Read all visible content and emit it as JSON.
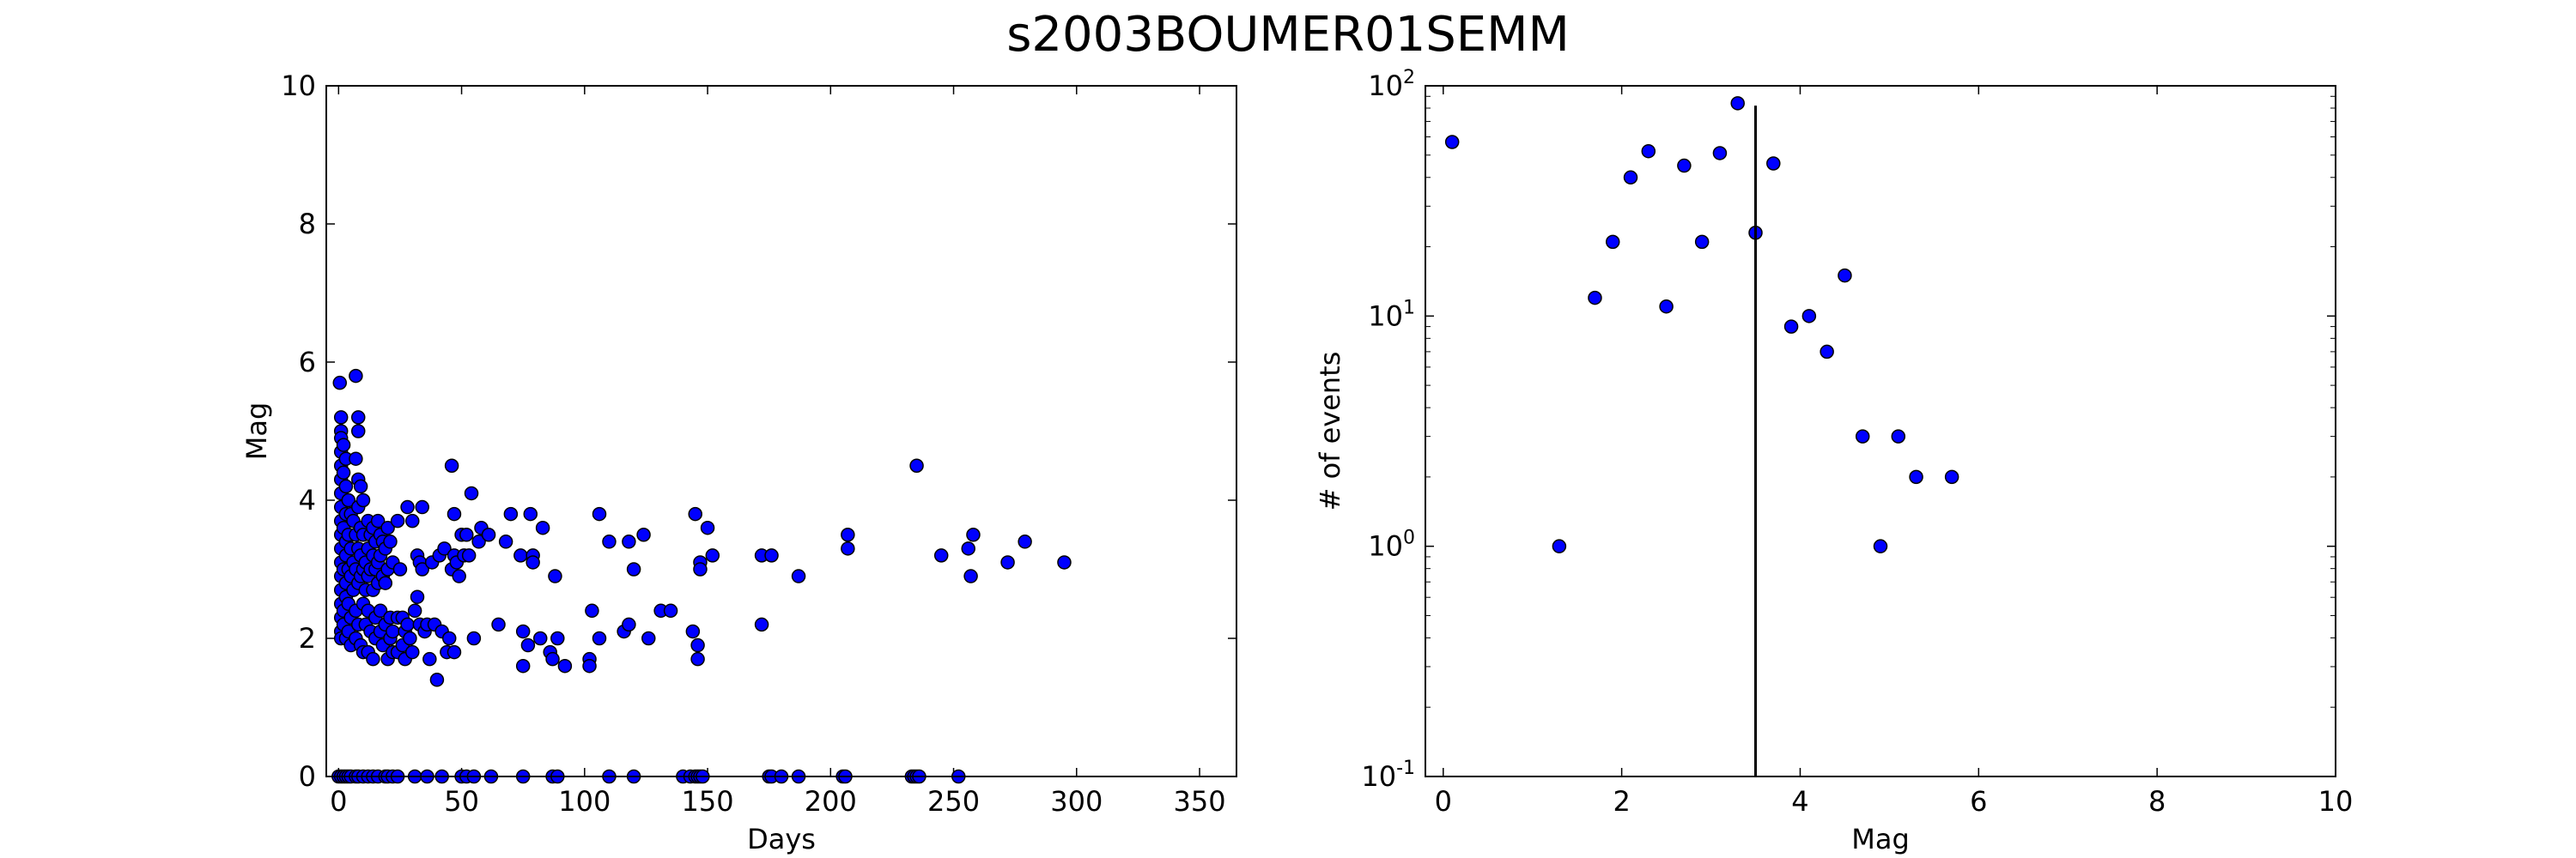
{
  "figure": {
    "title": "s2003BOUMER01SEMM"
  },
  "chart_data": [
    {
      "type": "scatter",
      "title": "",
      "xlabel": "Days",
      "ylabel": "Mag",
      "xlim": [
        -5,
        365
      ],
      "ylim": [
        0,
        10
      ],
      "xticks": [
        0,
        50,
        100,
        150,
        200,
        250,
        300,
        350
      ],
      "yticks": [
        0,
        2,
        4,
        6,
        8,
        10
      ],
      "marker_color": "#0000ff",
      "points": [
        [
          0.5,
          5.7
        ],
        [
          1,
          5.2
        ],
        [
          1,
          5.0
        ],
        [
          1,
          4.9
        ],
        [
          1,
          4.7
        ],
        [
          1,
          4.5
        ],
        [
          1,
          4.3
        ],
        [
          1,
          4.1
        ],
        [
          1,
          3.9
        ],
        [
          1,
          3.7
        ],
        [
          1,
          3.5
        ],
        [
          1,
          3.3
        ],
        [
          1,
          3.1
        ],
        [
          1,
          2.9
        ],
        [
          1,
          2.7
        ],
        [
          1,
          2.5
        ],
        [
          1,
          2.3
        ],
        [
          1,
          2.1
        ],
        [
          1,
          2.0
        ],
        [
          2,
          4.8
        ],
        [
          2,
          4.4
        ],
        [
          2,
          3.6
        ],
        [
          2,
          3.0
        ],
        [
          2,
          2.4
        ],
        [
          2,
          2.2
        ],
        [
          3,
          4.6
        ],
        [
          3,
          4.2
        ],
        [
          3,
          3.8
        ],
        [
          3,
          3.4
        ],
        [
          3,
          3.2
        ],
        [
          3,
          2.8
        ],
        [
          3,
          2.6
        ],
        [
          3,
          2.0
        ],
        [
          4,
          4.0
        ],
        [
          4,
          3.5
        ],
        [
          4,
          3.0
        ],
        [
          4,
          2.5
        ],
        [
          4,
          2.1
        ],
        [
          5,
          3.8
        ],
        [
          5,
          3.3
        ],
        [
          5,
          2.9
        ],
        [
          5,
          2.3
        ],
        [
          5,
          1.9
        ],
        [
          6,
          3.7
        ],
        [
          6,
          3.1
        ],
        [
          6,
          2.7
        ],
        [
          7,
          5.8
        ],
        [
          7,
          4.6
        ],
        [
          7,
          3.5
        ],
        [
          7,
          3.0
        ],
        [
          7,
          2.4
        ],
        [
          7,
          2.0
        ],
        [
          8,
          5.2
        ],
        [
          8,
          5.0
        ],
        [
          8,
          4.3
        ],
        [
          8,
          3.9
        ],
        [
          8,
          3.3
        ],
        [
          8,
          2.8
        ],
        [
          8,
          2.2
        ],
        [
          9,
          4.2
        ],
        [
          9,
          3.6
        ],
        [
          9,
          3.2
        ],
        [
          9,
          2.9
        ],
        [
          9,
          1.9
        ],
        [
          10,
          4.0
        ],
        [
          10,
          3.5
        ],
        [
          10,
          3.0
        ],
        [
          10,
          2.5
        ],
        [
          10,
          1.8
        ],
        [
          11,
          3.1
        ],
        [
          11,
          2.7
        ],
        [
          11,
          2.2
        ],
        [
          12,
          3.7
        ],
        [
          12,
          3.3
        ],
        [
          12,
          2.9
        ],
        [
          12,
          2.4
        ],
        [
          12,
          1.8
        ],
        [
          13,
          3.5
        ],
        [
          13,
          3.0
        ],
        [
          13,
          2.1
        ],
        [
          14,
          3.6
        ],
        [
          14,
          3.2
        ],
        [
          14,
          2.7
        ],
        [
          14,
          1.7
        ],
        [
          15,
          3.4
        ],
        [
          15,
          3.0
        ],
        [
          15,
          2.3
        ],
        [
          15,
          2.0
        ],
        [
          16,
          3.7
        ],
        [
          16,
          3.1
        ],
        [
          16,
          2.8
        ],
        [
          17,
          3.5
        ],
        [
          17,
          3.2
        ],
        [
          17,
          2.4
        ],
        [
          17,
          2.1
        ],
        [
          18,
          3.4
        ],
        [
          18,
          2.9
        ],
        [
          18,
          1.9
        ],
        [
          19,
          3.3
        ],
        [
          19,
          2.8
        ],
        [
          19,
          2.2
        ],
        [
          20,
          3.6
        ],
        [
          20,
          3.0
        ],
        [
          20,
          1.7
        ],
        [
          21,
          3.4
        ],
        [
          21,
          2.3
        ],
        [
          21,
          2.0
        ],
        [
          22,
          3.1
        ],
        [
          22,
          2.1
        ],
        [
          22,
          1.8
        ],
        [
          24,
          3.7
        ],
        [
          24,
          2.3
        ],
        [
          24,
          1.8
        ],
        [
          25,
          3.0
        ],
        [
          26,
          2.3
        ],
        [
          26,
          1.9
        ],
        [
          27,
          2.1
        ],
        [
          27,
          1.7
        ],
        [
          28,
          3.9
        ],
        [
          28,
          2.2
        ],
        [
          29,
          2.0
        ],
        [
          30,
          3.7
        ],
        [
          30,
          1.8
        ],
        [
          31,
          2.4
        ],
        [
          32,
          3.2
        ],
        [
          32,
          2.6
        ],
        [
          33,
          3.1
        ],
        [
          33,
          2.2
        ],
        [
          34,
          3.9
        ],
        [
          34,
          3.0
        ],
        [
          35,
          2.1
        ],
        [
          36,
          2.2
        ],
        [
          37,
          1.7
        ],
        [
          38,
          3.1
        ],
        [
          39,
          2.2
        ],
        [
          40,
          1.4
        ],
        [
          41,
          3.2
        ],
        [
          42,
          2.1
        ],
        [
          43,
          3.3
        ],
        [
          44,
          1.8
        ],
        [
          45,
          2.0
        ],
        [
          46,
          4.5
        ],
        [
          46,
          3.0
        ],
        [
          47,
          3.8
        ],
        [
          47,
          3.2
        ],
        [
          47,
          1.8
        ],
        [
          48,
          3.1
        ],
        [
          49,
          2.9
        ],
        [
          50,
          3.5
        ],
        [
          51,
          3.2
        ],
        [
          52,
          3.5
        ],
        [
          53,
          3.2
        ],
        [
          54,
          4.1
        ],
        [
          55,
          2.0
        ],
        [
          57,
          3.4
        ],
        [
          58,
          3.6
        ],
        [
          61,
          3.5
        ],
        [
          65,
          2.2
        ],
        [
          68,
          3.4
        ],
        [
          70,
          3.8
        ],
        [
          74,
          3.2
        ],
        [
          75,
          1.6
        ],
        [
          75,
          2.1
        ],
        [
          77,
          1.9
        ],
        [
          78,
          3.8
        ],
        [
          79,
          3.2
        ],
        [
          79,
          3.1
        ],
        [
          82,
          2.0
        ],
        [
          83,
          3.6
        ],
        [
          86,
          1.8
        ],
        [
          87,
          1.7
        ],
        [
          88,
          2.9
        ],
        [
          89,
          2.0
        ],
        [
          92,
          1.6
        ],
        [
          102,
          1.7
        ],
        [
          102,
          1.6
        ],
        [
          103,
          2.4
        ],
        [
          106,
          3.8
        ],
        [
          106,
          2.0
        ],
        [
          110,
          3.4
        ],
        [
          116,
          2.1
        ],
        [
          118,
          2.2
        ],
        [
          118,
          3.4
        ],
        [
          120,
          3.0
        ],
        [
          124,
          3.5
        ],
        [
          126,
          2.0
        ],
        [
          131,
          2.4
        ],
        [
          135,
          2.4
        ],
        [
          144,
          2.1
        ],
        [
          145,
          3.8
        ],
        [
          146,
          1.9
        ],
        [
          146,
          1.7
        ],
        [
          147,
          3.1
        ],
        [
          147,
          3.0
        ],
        [
          150,
          3.6
        ],
        [
          152,
          3.2
        ],
        [
          172,
          3.2
        ],
        [
          172,
          2.2
        ],
        [
          176,
          3.2
        ],
        [
          187,
          2.9
        ],
        [
          207,
          3.5
        ],
        [
          207,
          3.3
        ],
        [
          235,
          4.5
        ],
        [
          245,
          3.2
        ],
        [
          256,
          3.3
        ],
        [
          257,
          2.9
        ],
        [
          258,
          3.5
        ],
        [
          272,
          3.1
        ],
        [
          279,
          3.4
        ],
        [
          295,
          3.1
        ],
        [
          0,
          0
        ],
        [
          1,
          0
        ],
        [
          2,
          0
        ],
        [
          3,
          0
        ],
        [
          4,
          0
        ],
        [
          5,
          0
        ],
        [
          7,
          0
        ],
        [
          8,
          0
        ],
        [
          10,
          0
        ],
        [
          12,
          0
        ],
        [
          14,
          0
        ],
        [
          16,
          0
        ],
        [
          19,
          0
        ],
        [
          20,
          0
        ],
        [
          22,
          0
        ],
        [
          24,
          0
        ],
        [
          31,
          0
        ],
        [
          36,
          0
        ],
        [
          42,
          0
        ],
        [
          50,
          0
        ],
        [
          52,
          0
        ],
        [
          55,
          0
        ],
        [
          62,
          0
        ],
        [
          75,
          0
        ],
        [
          87,
          0
        ],
        [
          89,
          0
        ],
        [
          110,
          0
        ],
        [
          120,
          0
        ],
        [
          140,
          0
        ],
        [
          143,
          0
        ],
        [
          145,
          0
        ],
        [
          146,
          0
        ],
        [
          147,
          0
        ],
        [
          148,
          0
        ],
        [
          175,
          0
        ],
        [
          176,
          0
        ],
        [
          180,
          0
        ],
        [
          187,
          0
        ],
        [
          205,
          0
        ],
        [
          206,
          0
        ],
        [
          233,
          0
        ],
        [
          234,
          0
        ],
        [
          235,
          0
        ],
        [
          236,
          0
        ],
        [
          252,
          0
        ]
      ]
    },
    {
      "type": "scatter",
      "title": "",
      "xlabel": "Mag",
      "ylabel": "# of events",
      "xlim": [
        -0.2,
        10
      ],
      "ylim": [
        0.1,
        100
      ],
      "yscale": "log",
      "xticks": [
        0,
        2,
        4,
        6,
        8,
        10
      ],
      "yticks": [
        0.1,
        1,
        10,
        100
      ],
      "ytick_labels": [
        "10",
        "10",
        "10",
        "10"
      ],
      "ytick_exponents": [
        "-1",
        "0",
        "1",
        "2"
      ],
      "marker_color": "#0000ff",
      "points": [
        [
          0.1,
          57
        ],
        [
          1.3,
          1
        ],
        [
          1.7,
          12
        ],
        [
          1.9,
          21
        ],
        [
          2.1,
          40
        ],
        [
          2.3,
          52
        ],
        [
          2.5,
          11
        ],
        [
          2.7,
          45
        ],
        [
          2.9,
          21
        ],
        [
          3.1,
          51
        ],
        [
          3.3,
          84
        ],
        [
          3.5,
          23
        ],
        [
          3.7,
          46
        ],
        [
          3.9,
          9
        ],
        [
          4.1,
          10
        ],
        [
          4.3,
          7
        ],
        [
          4.5,
          15
        ],
        [
          4.7,
          3
        ],
        [
          4.9,
          1
        ],
        [
          5.1,
          3
        ],
        [
          5.3,
          2
        ],
        [
          5.7,
          2
        ]
      ],
      "vline": {
        "x": 3.5,
        "y_top": 82
      }
    }
  ]
}
